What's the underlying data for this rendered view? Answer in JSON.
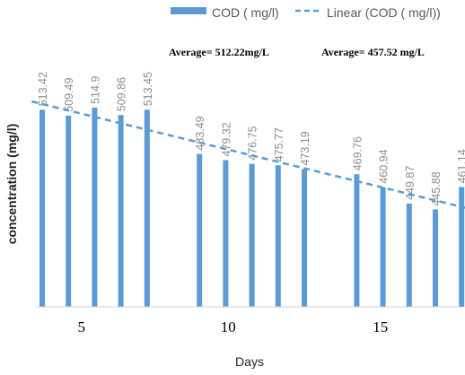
{
  "colors": {
    "bar": "#5b9bd5",
    "trend": "#5b9bd5"
  },
  "legend": {
    "bar_label": "COD ( mg/l)",
    "trend_label": "Linear (COD ( mg/l))"
  },
  "annotations": {
    "avg1": "Average= 512.22mg/L",
    "avg2": "Average= 457.52 mg/L"
  },
  "chart_data": {
    "type": "bar",
    "title": "",
    "xlabel": "Days",
    "ylabel": "concentration (mg/l)",
    "x_ticks": [
      5,
      10,
      15
    ],
    "xlim": [
      3,
      17
    ],
    "ylim": [
      380,
      530
    ],
    "series": [
      {
        "name": "COD ( mg/l)",
        "x": [
          3,
          4,
          5,
          6,
          7,
          9,
          10,
          11,
          12,
          13,
          15,
          16,
          17,
          18,
          19
        ],
        "values": [
          513.42,
          509.49,
          514.9,
          509.86,
          513.45,
          483.49,
          479.32,
          476.75,
          475.77,
          473.19,
          469.76,
          460.94,
          449.87,
          445.88,
          461.14
        ],
        "labels": [
          "513.42",
          "509.49",
          "514.9",
          "509.86",
          "513.45",
          "483.49",
          "479.32",
          "476.75",
          "475.77",
          "473.19",
          "469.76",
          "460.94",
          "449.87",
          "445.88",
          "461.14"
        ]
      }
    ],
    "trendline": {
      "name": "Linear (COD ( mg/l))",
      "type": "linear",
      "style": "dashed"
    }
  }
}
